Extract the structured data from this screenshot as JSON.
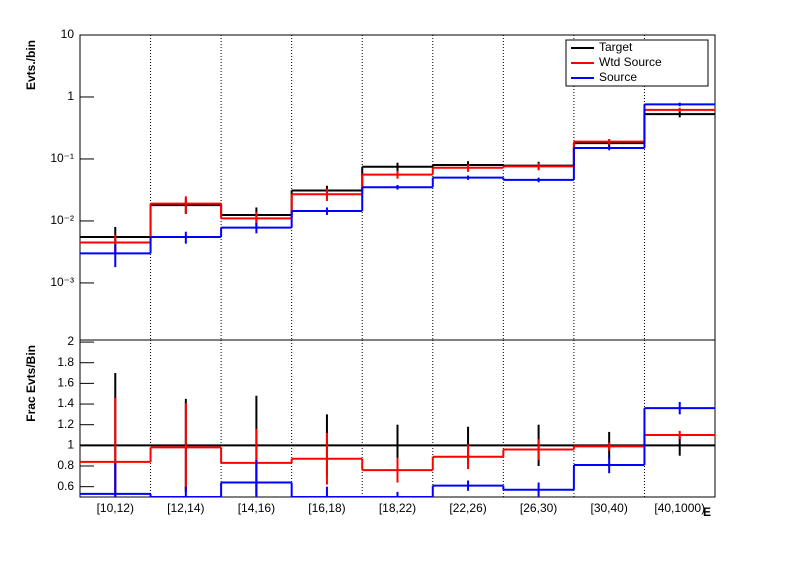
{
  "chart_data": [
    {
      "type": "step",
      "ylabel": "Evts./bin",
      "log_y": true,
      "grid_x": true,
      "ylim": [
        0.00012,
        10
      ],
      "yticks": [
        {
          "value": 0.001,
          "label": "10⁻³"
        },
        {
          "value": 0.01,
          "label": "10⁻²"
        },
        {
          "value": 0.1,
          "label": "10⁻¹"
        },
        1,
        10
      ],
      "legend": "top-right",
      "series": [
        {
          "name": "Target",
          "color": "#000000",
          "values": [
            0.0055,
            0.018,
            0.0125,
            0.031,
            0.075,
            0.08,
            0.078,
            0.18,
            0.53
          ],
          "errors": [
            0.0025,
            0.005,
            0.004,
            0.006,
            0.012,
            0.012,
            0.012,
            0.025,
            0.06
          ]
        },
        {
          "name": "Wtd Source",
          "color": "#ff0000",
          "values": [
            0.0045,
            0.019,
            0.011,
            0.027,
            0.056,
            0.072,
            0.076,
            0.19,
            0.62
          ],
          "errors": [
            0.0015,
            0.006,
            0.003,
            0.006,
            0.008,
            0.01,
            0.01,
            0.02,
            0.05
          ]
        },
        {
          "name": "Source",
          "color": "#0000ff",
          "values": [
            0.003,
            0.0055,
            0.0078,
            0.0145,
            0.035,
            0.05,
            0.046,
            0.15,
            0.76
          ],
          "errors": [
            0.0012,
            0.0012,
            0.0015,
            0.002,
            0.003,
            0.004,
            0.004,
            0.012,
            0.05
          ]
        }
      ]
    },
    {
      "type": "step",
      "ylabel": "Frac Evts/Bin",
      "xlabel": "E",
      "grid_x": true,
      "categories": [
        "[10,12)",
        "[12,14)",
        "[14,16)",
        "[16,18)",
        "[18,22)",
        "[22,26)",
        "[26,30)",
        "[30,40)",
        "[40,1000)"
      ],
      "ylim": [
        0.5,
        2.02
      ],
      "yticks": [
        0.6,
        0.8,
        1,
        1.2,
        1.4,
        1.6,
        1.8,
        2
      ],
      "series": [
        {
          "color": "#000000",
          "values": [
            1,
            1,
            1,
            1,
            1,
            1,
            1,
            1,
            1
          ],
          "errors": [
            0.7,
            0.45,
            0.48,
            0.3,
            0.2,
            0.18,
            0.2,
            0.13,
            0.1
          ]
        },
        {
          "color": "#ff0000",
          "values": [
            0.84,
            0.98,
            0.83,
            0.87,
            0.76,
            0.89,
            0.96,
            0.99,
            1.1
          ],
          "errors": [
            0.62,
            0.43,
            0.33,
            0.25,
            0.12,
            0.12,
            0.1,
            0.04,
            0.04
          ]
        },
        {
          "color": "#0000ff",
          "values": [
            0.53,
            0.5,
            0.64,
            0.5,
            0.5,
            0.61,
            0.57,
            0.81,
            1.36
          ],
          "errors": [
            0.3,
            0.1,
            0.22,
            0.1,
            0.05,
            0.05,
            0.07,
            0.08,
            0.06
          ]
        }
      ]
    }
  ]
}
